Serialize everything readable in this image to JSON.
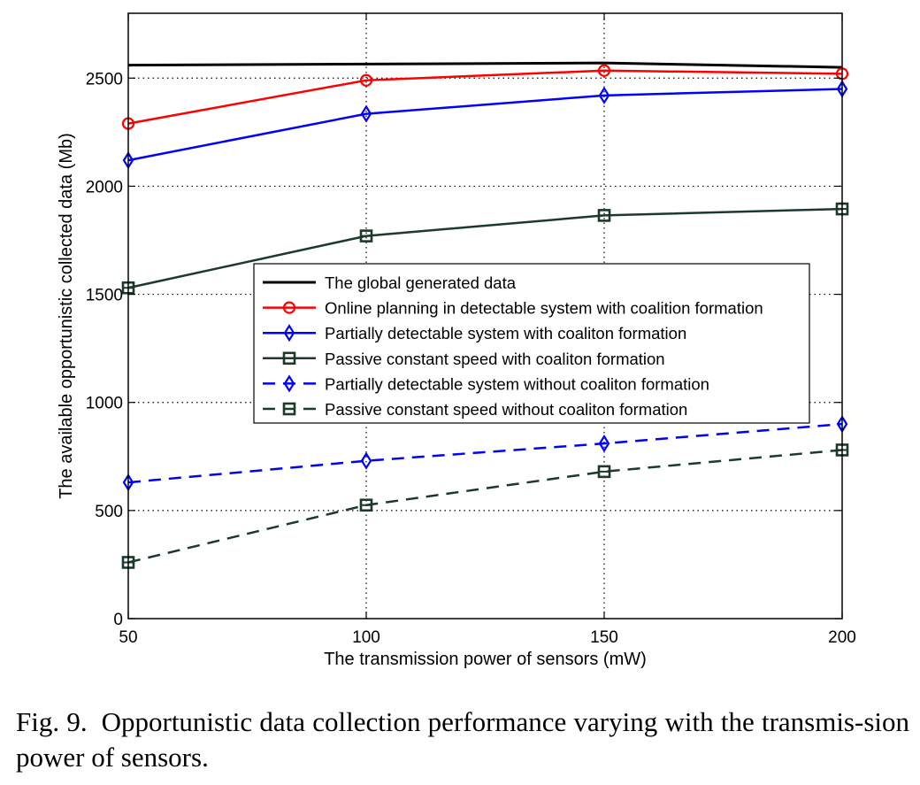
{
  "chart_data": {
    "type": "line",
    "xlabel": "The transmission power of sensors (mW)",
    "ylabel": "The available opportunistic collected data (Mb)",
    "x": [
      50,
      100,
      150,
      200
    ],
    "xticks": [
      50,
      100,
      150,
      200
    ],
    "yticks": [
      0,
      500,
      1000,
      1500,
      2000,
      2500
    ],
    "xlim": [
      50,
      200
    ],
    "ylim": [
      0,
      2800
    ],
    "grid": true,
    "legend_position": "center",
    "series": [
      {
        "name": "The global generated data",
        "values": [
          2560,
          2565,
          2570,
          2550
        ],
        "color": "#000000",
        "dash": "solid",
        "marker": "none"
      },
      {
        "name": "Online planning in detectable system with coalition formation",
        "values": [
          2290,
          2490,
          2535,
          2520
        ],
        "color": "#ff0000",
        "dash": "solid",
        "marker": "circle"
      },
      {
        "name": "Partially detectable system with coaliton formation",
        "values": [
          2120,
          2335,
          2420,
          2450
        ],
        "color": "#0000ff",
        "dash": "solid",
        "marker": "diamond"
      },
      {
        "name": "Passive constant speed with coaliton formation",
        "values": [
          1530,
          1770,
          1865,
          1895
        ],
        "color": "#1b3a2a",
        "dash": "solid",
        "marker": "square"
      },
      {
        "name": "Partially detectable system without coaliton formation",
        "values": [
          630,
          730,
          810,
          900
        ],
        "color": "#0000ff",
        "dash": "dashed",
        "marker": "diamond"
      },
      {
        "name": "Passive constant speed without coaliton formation",
        "values": [
          260,
          525,
          680,
          780
        ],
        "color": "#1b3a2a",
        "dash": "dashed",
        "marker": "square"
      }
    ]
  },
  "caption": {
    "label": "Fig. 9.",
    "text": "Opportunistic data collection performance varying with the transmis-sion power of sensors."
  }
}
